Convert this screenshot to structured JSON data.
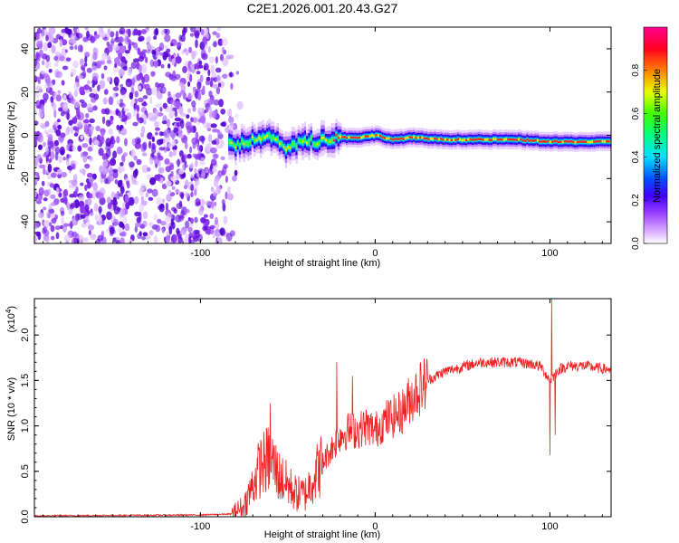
{
  "title": "C2E1.2026.001.20.43.G27",
  "chart_data": [
    {
      "type": "heatmap",
      "panel": "top",
      "title": "C2E1.2026.001.20.43.G27",
      "xlabel": "Height of straight line (km)",
      "ylabel": "Frequency (Hz)",
      "xlim": [
        -195,
        135
      ],
      "ylim": [
        -50,
        50
      ],
      "xticks": [
        -100,
        0,
        100
      ],
      "xtick_labels": [
        "-100",
        "0",
        "100"
      ],
      "yticks": [
        -40,
        -20,
        0,
        20,
        40
      ],
      "ytick_labels": [
        "-40",
        "-20",
        "0",
        "20",
        "40"
      ],
      "grid": false,
      "noise_region_x": [
        -195,
        -82
      ],
      "signal_ridge": [
        {
          "x": -82,
          "f": -5
        },
        {
          "x": -75,
          "f": -3
        },
        {
          "x": -70,
          "f": -2
        },
        {
          "x": -62,
          "f": -1
        },
        {
          "x": -55,
          "f": -4
        },
        {
          "x": -50,
          "f": -6
        },
        {
          "x": -45,
          "f": -4
        },
        {
          "x": -40,
          "f": -2
        },
        {
          "x": -35,
          "f": -3
        },
        {
          "x": -30,
          "f": -2
        },
        {
          "x": -22,
          "f": -1
        },
        {
          "x": -10,
          "f": -1
        },
        {
          "x": 0,
          "f": 0
        },
        {
          "x": 10,
          "f": -2
        },
        {
          "x": 20,
          "f": -1
        },
        {
          "x": 40,
          "f": -2
        },
        {
          "x": 60,
          "f": -2
        },
        {
          "x": 80,
          "f": -2
        },
        {
          "x": 100,
          "f": -3
        },
        {
          "x": 120,
          "f": -3
        },
        {
          "x": 135,
          "f": -3
        }
      ],
      "colorbar": {
        "label": "Normalized spectral amplitude",
        "range": [
          0,
          1
        ],
        "ticks": [
          0.0,
          0.2,
          0.4,
          0.6,
          0.8
        ],
        "tick_labels": [
          "0.0",
          "0.2",
          "0.4",
          "0.6",
          "0.8"
        ],
        "colors": [
          "#ffffff",
          "#c080ff",
          "#4000ff",
          "#00ffff",
          "#00ff00",
          "#ffff00",
          "#ff0000",
          "#ff00a0"
        ]
      }
    },
    {
      "type": "line",
      "panel": "bottom",
      "xlabel": "Height of straight line (km)",
      "ylabel": "SNR (10 * v/v)",
      "exponent_label": "(x10",
      "exponent_power": "4",
      "exponent_close": ")",
      "xlim": [
        -195,
        135
      ],
      "ylim": [
        0,
        2.4
      ],
      "xticks": [
        -100,
        0,
        100
      ],
      "xtick_labels": [
        "-100",
        "0",
        "100"
      ],
      "yticks": [
        0.0,
        0.5,
        1.0,
        1.5,
        2.0
      ],
      "ytick_labels": [
        "0.0",
        "0.5",
        "1.0",
        "1.5",
        "2.0"
      ],
      "grid": false,
      "line_color": "#ee2222",
      "series": [
        {
          "name": "SNR",
          "envelope": [
            {
              "x": -195,
              "y": 0.01
            },
            {
              "x": -150,
              "y": 0.015
            },
            {
              "x": -100,
              "y": 0.02
            },
            {
              "x": -82,
              "y": 0.03
            },
            {
              "x": -75,
              "y": 0.12
            },
            {
              "x": -70,
              "y": 0.35
            },
            {
              "x": -66,
              "y": 0.55
            },
            {
              "x": -60,
              "y": 0.65
            },
            {
              "x": -55,
              "y": 0.45
            },
            {
              "x": -50,
              "y": 0.35
            },
            {
              "x": -45,
              "y": 0.25
            },
            {
              "x": -40,
              "y": 0.25
            },
            {
              "x": -35,
              "y": 0.45
            },
            {
              "x": -30,
              "y": 0.6
            },
            {
              "x": -25,
              "y": 0.75
            },
            {
              "x": -20,
              "y": 0.9
            },
            {
              "x": -15,
              "y": 0.95
            },
            {
              "x": -10,
              "y": 0.95
            },
            {
              "x": -5,
              "y": 1.0
            },
            {
              "x": 0,
              "y": 0.95
            },
            {
              "x": 5,
              "y": 1.05
            },
            {
              "x": 10,
              "y": 1.1
            },
            {
              "x": 15,
              "y": 1.15
            },
            {
              "x": 20,
              "y": 1.3
            },
            {
              "x": 25,
              "y": 1.4
            },
            {
              "x": 30,
              "y": 1.5
            },
            {
              "x": 40,
              "y": 1.6
            },
            {
              "x": 50,
              "y": 1.65
            },
            {
              "x": 60,
              "y": 1.7
            },
            {
              "x": 70,
              "y": 1.7
            },
            {
              "x": 80,
              "y": 1.7
            },
            {
              "x": 90,
              "y": 1.68
            },
            {
              "x": 95,
              "y": 1.65
            },
            {
              "x": 100,
              "y": 1.5
            },
            {
              "x": 105,
              "y": 1.62
            },
            {
              "x": 110,
              "y": 1.66
            },
            {
              "x": 120,
              "y": 1.66
            },
            {
              "x": 130,
              "y": 1.63
            },
            {
              "x": 135,
              "y": 1.62
            }
          ],
          "spikes": [
            {
              "x": -60,
              "y": 1.25
            },
            {
              "x": -22,
              "y": 1.7
            },
            {
              "x": -13,
              "y": 1.55
            },
            {
              "x": 100,
              "y": 0.68
            },
            {
              "x": 101,
              "y": 2.4
            },
            {
              "x": 103,
              "y": 0.9
            }
          ]
        }
      ]
    }
  ]
}
